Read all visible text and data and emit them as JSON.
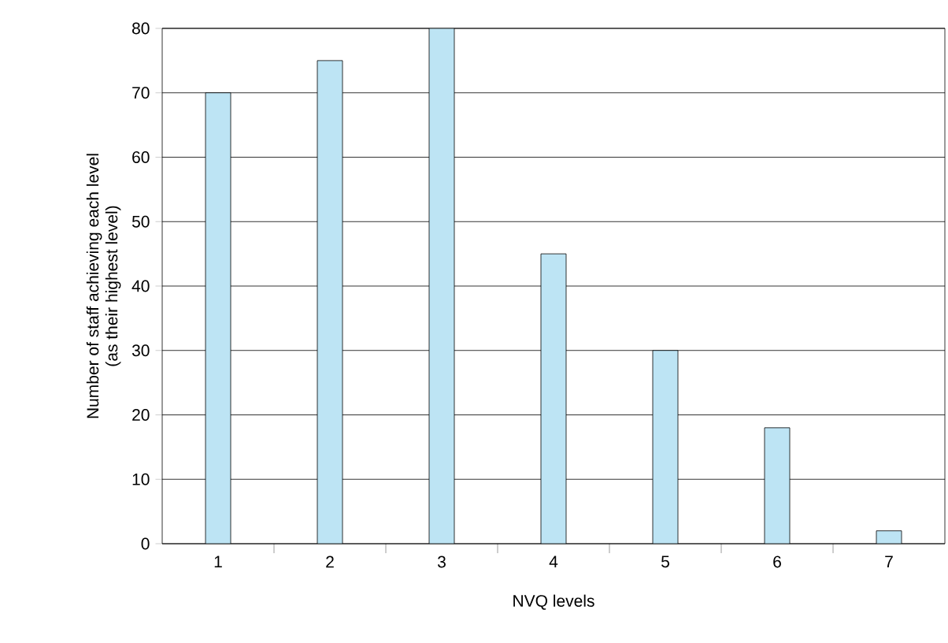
{
  "chart_data": {
    "type": "bar",
    "xlabel": "NVQ levels",
    "ylabel": "Number of staff achieving each level\n(as their highest level)",
    "categories": [
      "1",
      "2",
      "3",
      "4",
      "5",
      "6",
      "7"
    ],
    "values": [
      70,
      75,
      80,
      45,
      30,
      18,
      2
    ],
    "color": "#bde4f4",
    "ylim": [
      0,
      80
    ],
    "yticks": [
      0,
      10,
      20,
      30,
      40,
      50,
      60,
      70,
      80
    ],
    "grid": "y"
  }
}
